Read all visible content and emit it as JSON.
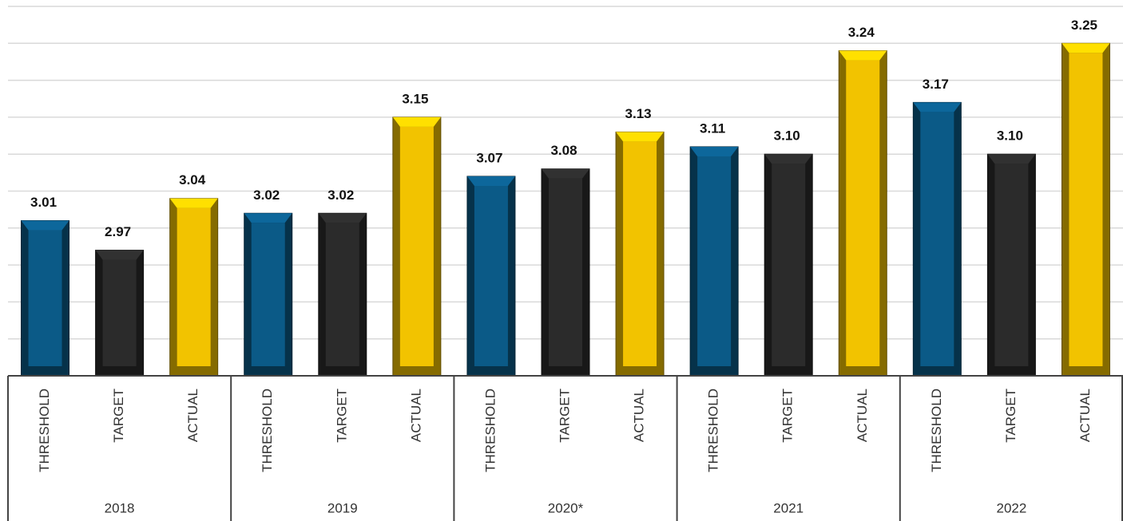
{
  "chart_data": {
    "type": "bar",
    "categories": [
      "2018",
      "2019",
      "2020*",
      "2021",
      "2022"
    ],
    "series": [
      {
        "name": "THRESHOLD",
        "color": "#0b5a87",
        "values": [
          3.01,
          3.02,
          3.07,
          3.11,
          3.17
        ],
        "value_labels": [
          "3.01",
          "3.02",
          "3.07",
          "3.11",
          "3.17"
        ]
      },
      {
        "name": "TARGET",
        "color": "#2b2b2b",
        "values": [
          2.97,
          3.02,
          3.08,
          3.1,
          3.1
        ],
        "value_labels": [
          "2.97",
          "3.02",
          "3.08",
          "3.10",
          "3.10"
        ]
      },
      {
        "name": "ACTUAL",
        "color": "#f2c300",
        "values": [
          3.04,
          3.15,
          3.13,
          3.24,
          3.25
        ],
        "value_labels": [
          "3.04",
          "3.15",
          "3.13",
          "3.24",
          "3.25"
        ]
      }
    ],
    "ylim": [
      2.8,
      3.3
    ],
    "yticks": [
      2.8,
      2.85,
      2.9,
      2.95,
      3.0,
      3.05,
      3.1,
      3.15,
      3.2,
      3.25,
      3.3
    ],
    "grid": true
  }
}
